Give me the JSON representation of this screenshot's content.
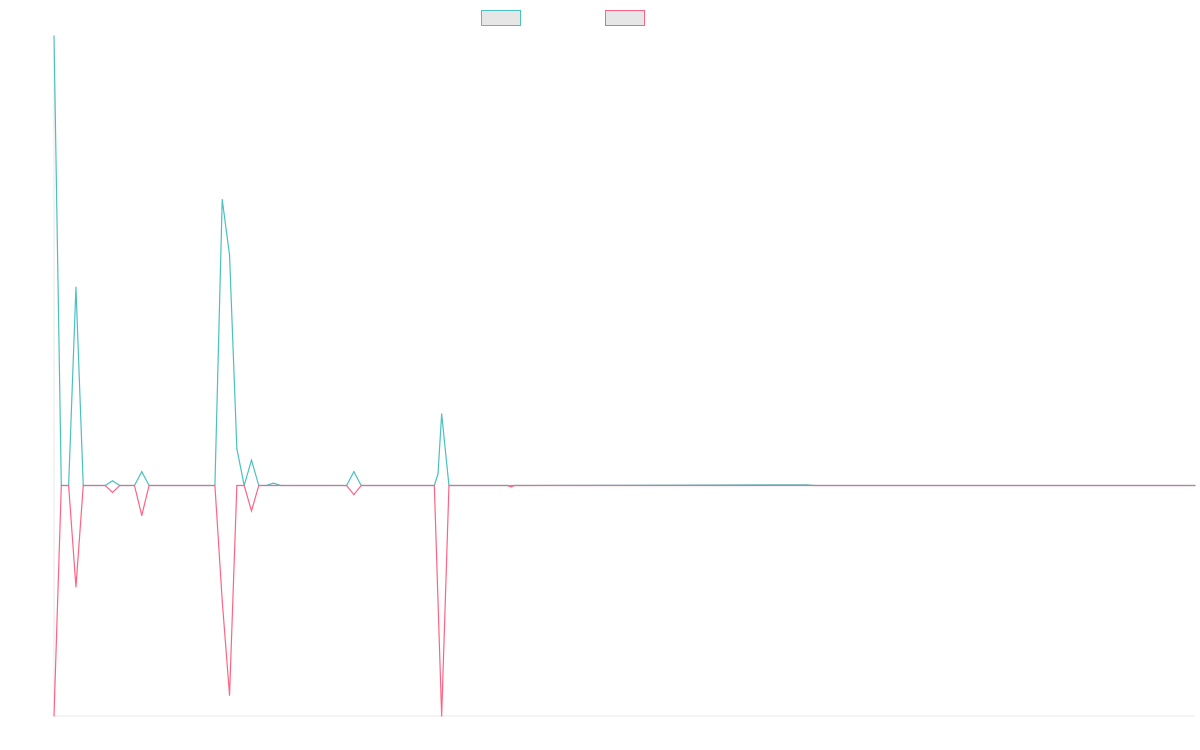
{
  "chart_data": {
    "type": "line",
    "title": "",
    "xlabel": "",
    "ylabel": "",
    "grid": false,
    "legend_position": "top-center",
    "x_count": 157,
    "ylim": [
      -1.0,
      1.95
    ],
    "series": [
      {
        "color": "#4bc0c0",
        "fill": "#e6e6e6",
        "points": [
          [
            0,
            1.95
          ],
          [
            1,
            0
          ],
          [
            2,
            0
          ],
          [
            3,
            0.86
          ],
          [
            4,
            0
          ],
          [
            7,
            0
          ],
          [
            8,
            0.02
          ],
          [
            9,
            0
          ],
          [
            11,
            0
          ],
          [
            12,
            0.06
          ],
          [
            13,
            0
          ],
          [
            22,
            0
          ],
          [
            23,
            1.24
          ],
          [
            24,
            1.0
          ],
          [
            25,
            0.16
          ],
          [
            26,
            0
          ],
          [
            27,
            0.11
          ],
          [
            28,
            0
          ],
          [
            29,
            0
          ],
          [
            30,
            0.01
          ],
          [
            31,
            0
          ],
          [
            40,
            0
          ],
          [
            41,
            0.06
          ],
          [
            42,
            0
          ],
          [
            52,
            0
          ],
          [
            52.5,
            0.05
          ],
          [
            53,
            0.31
          ],
          [
            54,
            0
          ],
          [
            62,
            0
          ],
          [
            103,
            0.003
          ],
          [
            104,
            0
          ],
          [
            156,
            0
          ]
        ]
      },
      {
        "color": "#ff6384",
        "fill": "#e6e6e6",
        "points": [
          [
            0,
            -1.0
          ],
          [
            1,
            0
          ],
          [
            2,
            0
          ],
          [
            3,
            -0.44
          ],
          [
            4,
            0
          ],
          [
            7,
            0
          ],
          [
            8,
            -0.03
          ],
          [
            9,
            0
          ],
          [
            11,
            0
          ],
          [
            12,
            -0.13
          ],
          [
            13,
            0
          ],
          [
            22,
            0
          ],
          [
            23,
            -0.5
          ],
          [
            24,
            -0.91
          ],
          [
            25,
            0
          ],
          [
            26,
            0
          ],
          [
            27,
            -0.11
          ],
          [
            28,
            0
          ],
          [
            40,
            0
          ],
          [
            41,
            -0.04
          ],
          [
            42,
            0
          ],
          [
            52,
            0
          ],
          [
            53,
            -1.0
          ],
          [
            54,
            0
          ],
          [
            62,
            0
          ],
          [
            62.5,
            -0.006
          ],
          [
            63,
            0
          ],
          [
            156,
            0
          ]
        ]
      }
    ]
  }
}
